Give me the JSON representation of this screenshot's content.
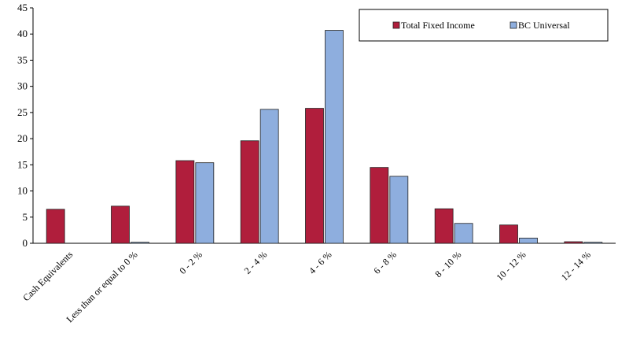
{
  "chart_data": {
    "type": "bar",
    "categories": [
      "Cash Equivalents",
      "Less than or equal to 0 %",
      "0 - 2 %",
      "2 - 4 %",
      "4 - 6 %",
      "6 - 8 %",
      "8 - 10 %",
      "10 - 12 %",
      "12 - 14 %"
    ],
    "series": [
      {
        "name": "Total Fixed Income",
        "values": [
          6.5,
          7.1,
          15.8,
          19.6,
          25.8,
          14.5,
          6.6,
          3.5,
          0.3
        ],
        "color": "#b01e3c"
      },
      {
        "name": "BC Universal",
        "values": [
          0,
          0.2,
          15.4,
          25.6,
          40.7,
          12.8,
          3.8,
          1.0,
          0.2
        ],
        "color": "#8eaede"
      }
    ],
    "ylim": [
      0,
      45
    ],
    "yticks": [
      0,
      5,
      10,
      15,
      20,
      25,
      30,
      35,
      40,
      45
    ],
    "grid": false,
    "legend": "top-right",
    "title": "",
    "xlabel": "",
    "ylabel": ""
  }
}
